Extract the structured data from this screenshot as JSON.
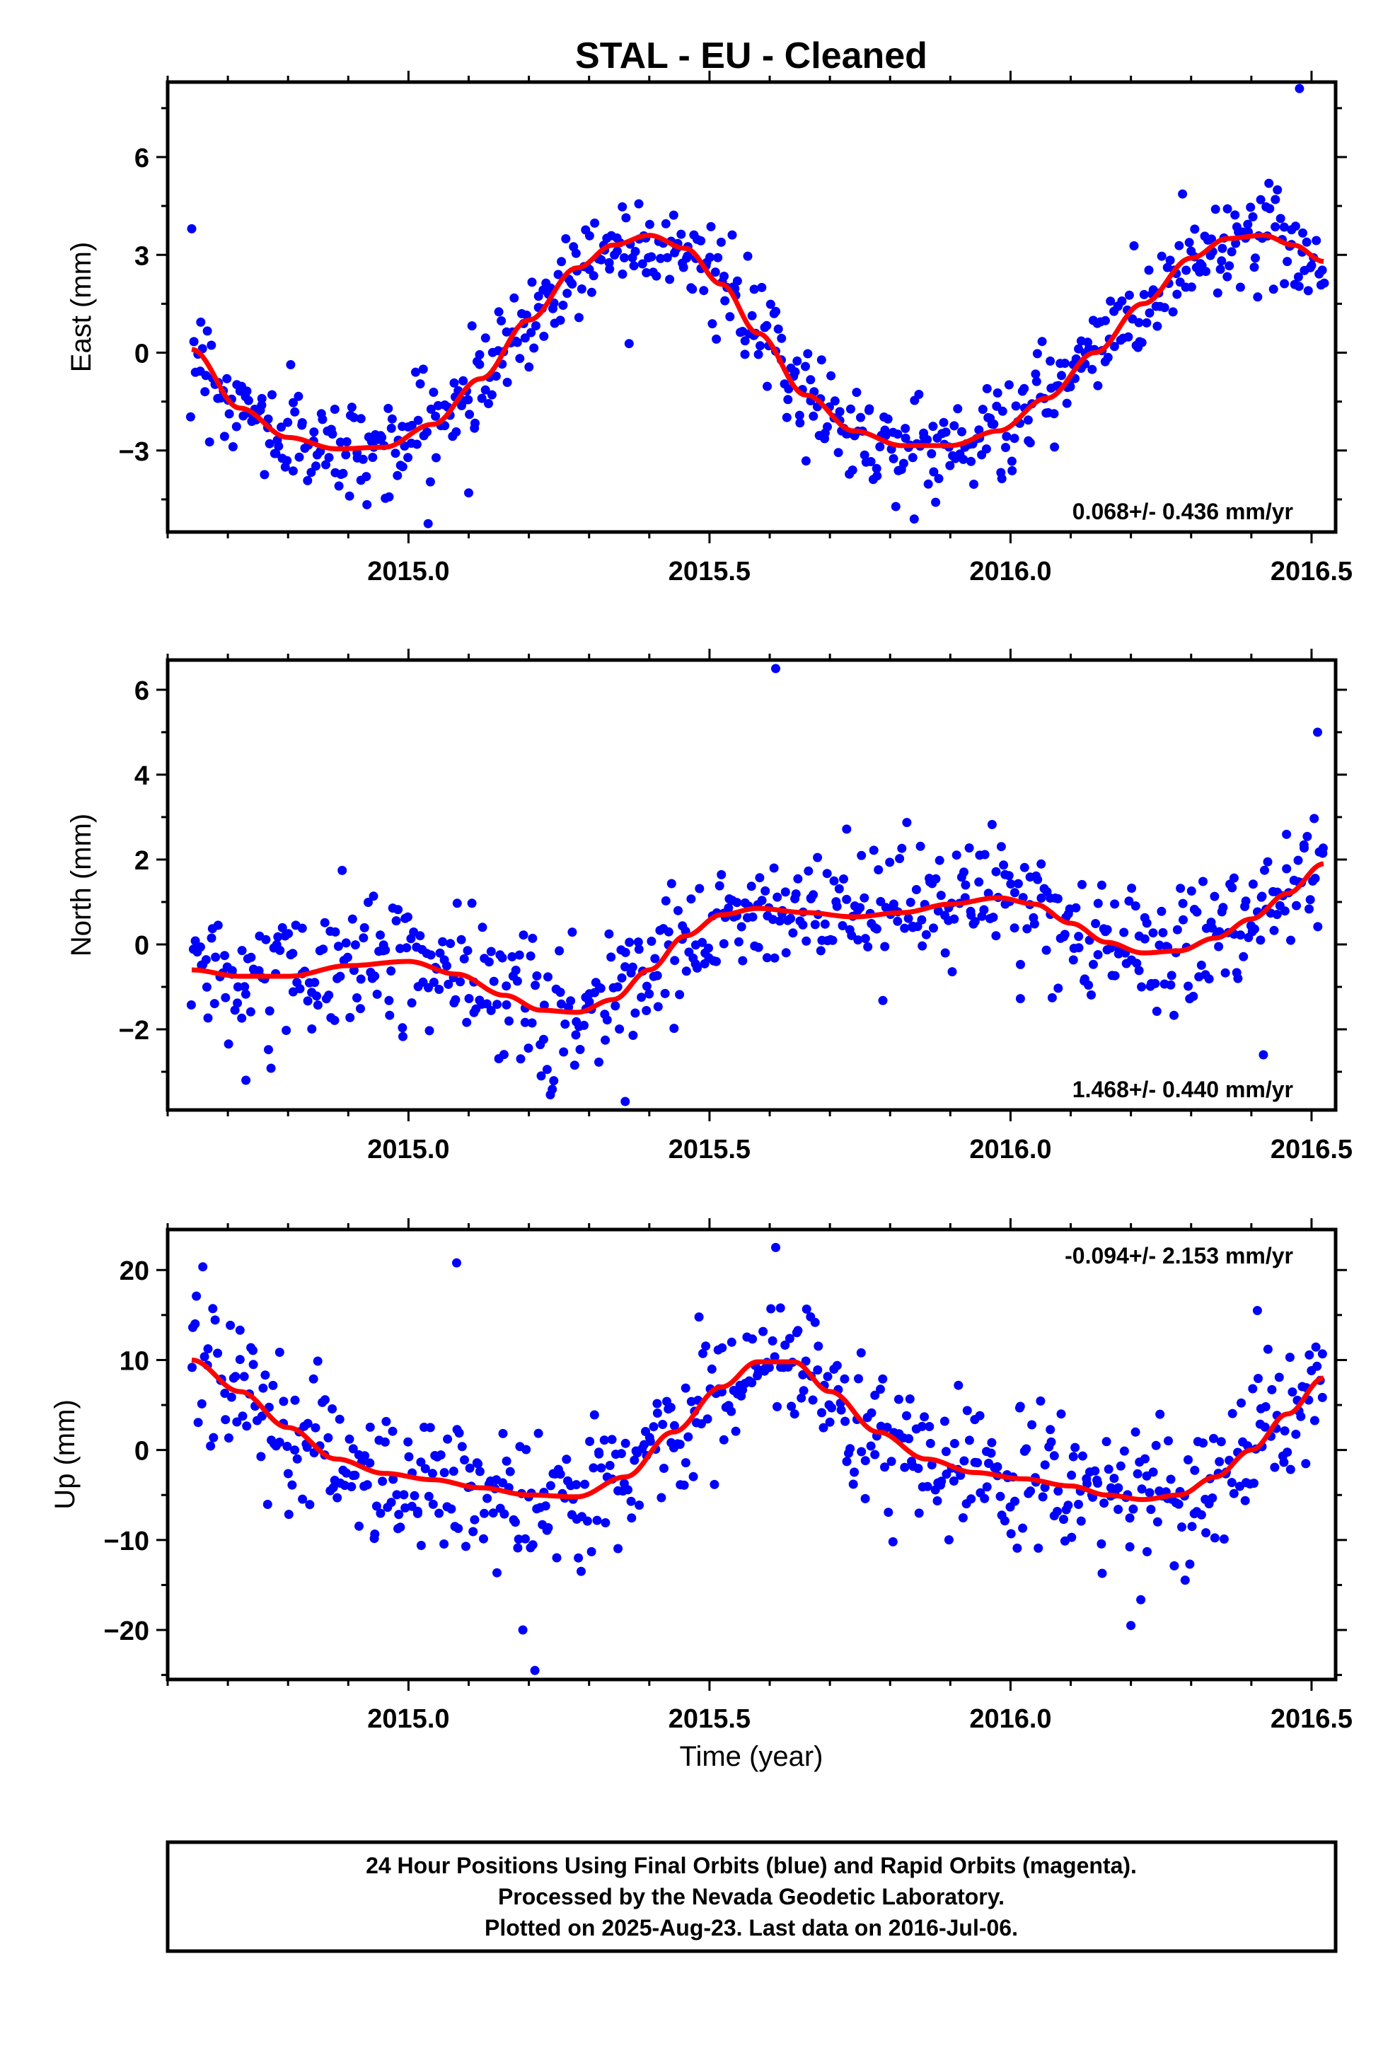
{
  "title": "STAL  - EU - Cleaned",
  "xlabel": "Time (year)",
  "footer": {
    "lines": [
      "24 Hour Positions Using Final Orbits (blue) and Rapid Orbits (magenta).",
      "Processed by the Nevada Geodetic Laboratory.",
      "Plotted on 2025-Aug-23. Last data on 2016-Jul-06."
    ]
  },
  "colors": {
    "points": "#0000ff",
    "fit": "#ff0000",
    "frame": "#000000"
  },
  "chart_data": [
    {
      "type": "scatter",
      "ylabel": "East (mm)",
      "rate": "0.068+/- 0.436 mm/yr",
      "rate_position": "bottom-right",
      "xlim": [
        2014.6,
        2016.54
      ],
      "ylim": [
        -5.5,
        8.3
      ],
      "xticks": [
        2015.0,
        2015.5,
        2016.0,
        2016.5
      ],
      "xtick_labels": [
        "2015.0",
        "2015.5",
        "2016.0",
        "2016.5"
      ],
      "yticks": [
        -3,
        0,
        3,
        6
      ],
      "ytick_labels": [
        "−3",
        "0",
        "3",
        "6"
      ],
      "fit_curve": {
        "x": [
          2014.64,
          2014.72,
          2014.8,
          2014.88,
          2014.96,
          2015.04,
          2015.12,
          2015.2,
          2015.28,
          2015.34,
          2015.4,
          2015.46,
          2015.52,
          2015.58,
          2015.66,
          2015.74,
          2015.82,
          2015.9,
          2015.98,
          2016.06,
          2016.14,
          2016.22,
          2016.3,
          2016.36,
          2016.42,
          2016.47,
          2016.52
        ],
        "y": [
          0.1,
          -1.7,
          -2.6,
          -2.95,
          -2.9,
          -2.2,
          -0.8,
          1.0,
          2.6,
          3.3,
          3.6,
          3.2,
          2.1,
          0.6,
          -1.3,
          -2.4,
          -2.85,
          -2.85,
          -2.4,
          -1.4,
          0.0,
          1.5,
          2.9,
          3.5,
          3.6,
          3.3,
          2.8
        ]
      },
      "noise_sd": 0.75,
      "n_points": 620,
      "outliers": [
        {
          "x": 2014.64,
          "y": 3.8
        },
        {
          "x": 2016.48,
          "y": 8.1
        },
        {
          "x": 2015.1,
          "y": -4.3
        },
        {
          "x": 2015.84,
          "y": -5.1
        }
      ]
    },
    {
      "type": "scatter",
      "ylabel": "North (mm)",
      "rate": "1.468+/- 0.440 mm/yr",
      "rate_position": "bottom-right",
      "xlim": [
        2014.6,
        2016.54
      ],
      "ylim": [
        -3.9,
        6.7
      ],
      "xticks": [
        2015.0,
        2015.5,
        2016.0,
        2016.5
      ],
      "xtick_labels": [
        "2015.0",
        "2015.5",
        "2016.0",
        "2016.5"
      ],
      "yticks": [
        -2,
        0,
        2,
        4,
        6
      ],
      "ytick_labels": [
        "−2",
        "0",
        "2",
        "4",
        "6"
      ],
      "fit_curve": {
        "x": [
          2014.64,
          2014.72,
          2014.8,
          2014.9,
          2015.0,
          2015.08,
          2015.16,
          2015.22,
          2015.28,
          2015.34,
          2015.4,
          2015.46,
          2015.52,
          2015.58,
          2015.66,
          2015.74,
          2015.82,
          2015.9,
          2015.98,
          2016.04,
          2016.1,
          2016.16,
          2016.22,
          2016.28,
          2016.34,
          2016.4,
          2016.46,
          2016.52
        ],
        "y": [
          -0.6,
          -0.75,
          -0.75,
          -0.5,
          -0.4,
          -0.7,
          -1.2,
          -1.55,
          -1.6,
          -1.3,
          -0.6,
          0.2,
          0.7,
          0.85,
          0.75,
          0.65,
          0.75,
          0.95,
          1.1,
          0.95,
          0.5,
          0.05,
          -0.2,
          -0.15,
          0.15,
          0.6,
          1.2,
          1.9
        ]
      },
      "noise_sd": 0.75,
      "n_points": 600,
      "outliers": [
        {
          "x": 2015.61,
          "y": 6.5
        },
        {
          "x": 2016.51,
          "y": 5.0
        },
        {
          "x": 2016.42,
          "y": -2.6
        },
        {
          "x": 2015.36,
          "y": -3.7
        },
        {
          "x": 2014.73,
          "y": -3.2
        }
      ]
    },
    {
      "type": "scatter",
      "ylabel": "Up (mm)",
      "rate": "-0.094+/- 2.153 mm/yr",
      "rate_position": "top-right",
      "xlim": [
        2014.6,
        2016.54
      ],
      "ylim": [
        -25.5,
        24.5
      ],
      "xticks": [
        2015.0,
        2015.5,
        2016.0,
        2016.5
      ],
      "xtick_labels": [
        "2015.0",
        "2015.5",
        "2016.0",
        "2016.5"
      ],
      "yticks": [
        -20,
        -10,
        0,
        10,
        20
      ],
      "ytick_labels": [
        "−20",
        "−10",
        "0",
        "10",
        "20"
      ],
      "fit_curve": {
        "x": [
          2014.64,
          2014.72,
          2014.8,
          2014.88,
          2014.96,
          2015.04,
          2015.12,
          2015.2,
          2015.28,
          2015.36,
          2015.44,
          2015.52,
          2015.58,
          2015.64,
          2015.7,
          2015.78,
          2015.86,
          2015.94,
          2016.02,
          2016.1,
          2016.16,
          2016.22,
          2016.28,
          2016.34,
          2016.4,
          2016.46,
          2016.52
        ],
        "y": [
          10,
          6.5,
          2.5,
          -1.0,
          -2.6,
          -3.3,
          -4.2,
          -5.0,
          -5.2,
          -3.0,
          2.0,
          7.0,
          9.8,
          9.8,
          6.5,
          2.0,
          -1.0,
          -2.5,
          -3.2,
          -4.0,
          -5.0,
          -5.5,
          -5.0,
          -3.0,
          0.0,
          4.0,
          8.0
        ]
      },
      "noise_sd": 3.8,
      "n_points": 600,
      "outliers": [
        {
          "x": 2015.08,
          "y": 20.8
        },
        {
          "x": 2015.61,
          "y": 22.5
        },
        {
          "x": 2015.21,
          "y": -24.5
        },
        {
          "x": 2016.2,
          "y": -19.5
        },
        {
          "x": 2015.19,
          "y": -20.0
        },
        {
          "x": 2016.41,
          "y": 15.5
        }
      ]
    }
  ]
}
